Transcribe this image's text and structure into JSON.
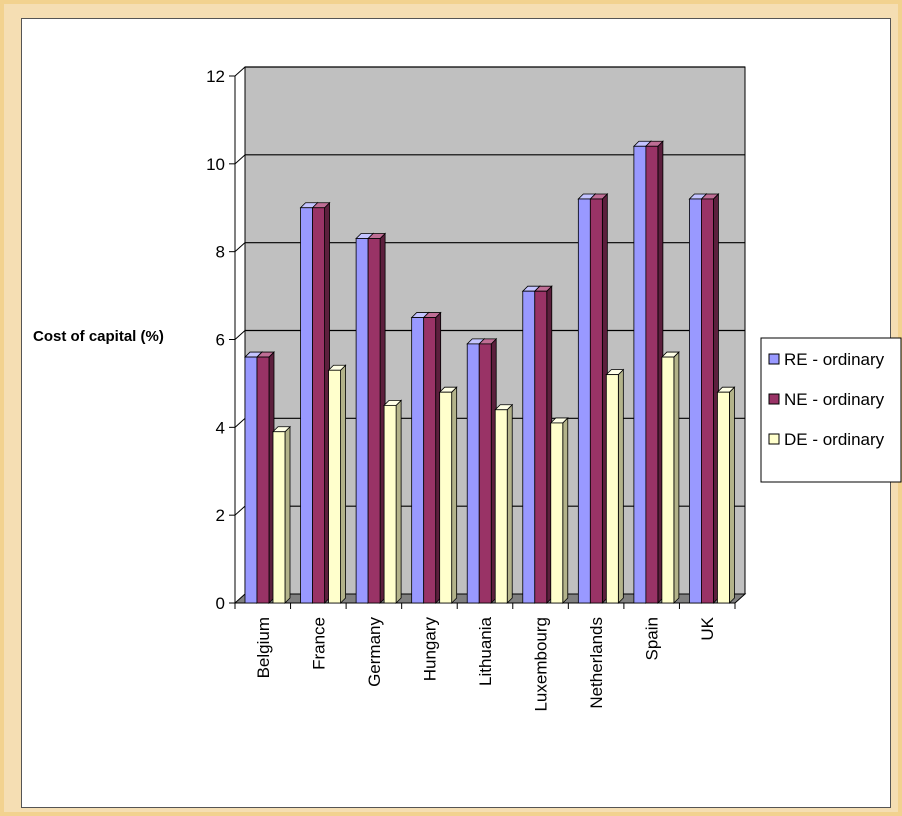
{
  "colors": {
    "background_outer": "#f5deb3",
    "plot_wall": "#c0c0c0",
    "floor": "#808080",
    "re_front": "#9999ff",
    "re_side": "#5f5fa8",
    "re_top": "#c4c4ff",
    "ne_front": "#993366",
    "ne_side": "#5c1f3d",
    "ne_top": "#bf6e95",
    "de_front": "#ffffcc",
    "de_side": "#b3b38a",
    "de_top": "#ffffe6"
  },
  "chart_data": {
    "type": "bar",
    "title": "",
    "xlabel": "",
    "ylabel": "Cost of capital (%)",
    "ylim": [
      0,
      12
    ],
    "yticks": [
      0,
      2,
      4,
      6,
      8,
      10,
      12
    ],
    "grid": true,
    "legend_position": "right",
    "categories": [
      "Belgium",
      "France",
      "Germany",
      "Hungary",
      "Lithuania",
      "Luxembourg",
      "Netherlands",
      "Spain",
      "UK"
    ],
    "series": [
      {
        "name": "RE - ordinary",
        "values": [
          5.6,
          9.0,
          8.3,
          6.5,
          5.9,
          7.1,
          9.2,
          10.4,
          9.2
        ]
      },
      {
        "name": "NE - ordinary",
        "values": [
          5.6,
          9.0,
          8.3,
          6.5,
          5.9,
          7.1,
          9.2,
          10.4,
          9.2
        ]
      },
      {
        "name": "DE - ordinary",
        "values": [
          3.9,
          5.3,
          4.5,
          4.8,
          4.4,
          4.1,
          5.2,
          5.6,
          4.8
        ]
      }
    ]
  }
}
